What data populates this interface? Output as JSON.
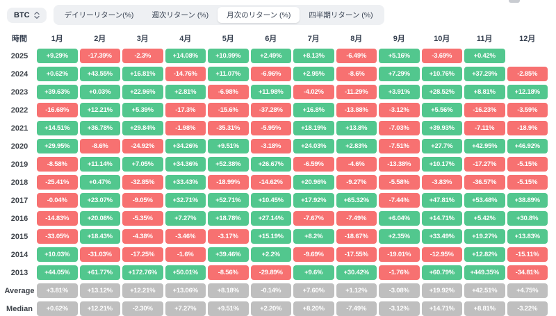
{
  "header": {
    "symbol": "BTC",
    "tabs": [
      {
        "label": "デイリーリターン(%)",
        "active": false
      },
      {
        "label": "週次リターン (%)",
        "active": false
      },
      {
        "label": "月次のリターン (%)",
        "active": true
      },
      {
        "label": "四半期リターン (%)",
        "active": false
      }
    ]
  },
  "colors": {
    "positive": "#52c78e",
    "negative": "#f77171",
    "summary": "#bfbfbf"
  },
  "chart_data": {
    "type": "heatmap",
    "columns": [
      "時間",
      "1月",
      "2月",
      "3月",
      "4月",
      "5月",
      "6月",
      "7月",
      "8月",
      "9月",
      "10月",
      "11月",
      "12月"
    ],
    "rows": [
      {
        "label": "2025",
        "values": [
          "+9.29%",
          "-17.39%",
          "-2.3%",
          "+14.08%",
          "+10.99%",
          "+2.49%",
          "+8.13%",
          "-6.49%",
          "+5.16%",
          "-3.69%",
          "+0.42%",
          ""
        ]
      },
      {
        "label": "2024",
        "values": [
          "+0.62%",
          "+43.55%",
          "+16.81%",
          "-14.76%",
          "+11.07%",
          "-6.96%",
          "+2.95%",
          "-8.6%",
          "+7.29%",
          "+10.76%",
          "+37.29%",
          "-2.85%"
        ]
      },
      {
        "label": "2023",
        "values": [
          "+39.63%",
          "+0.03%",
          "+22.96%",
          "+2.81%",
          "-6.98%",
          "+11.98%",
          "-4.02%",
          "-11.29%",
          "+3.91%",
          "+28.52%",
          "+8.81%",
          "+12.18%"
        ]
      },
      {
        "label": "2022",
        "values": [
          "-16.68%",
          "+12.21%",
          "+5.39%",
          "-17.3%",
          "-15.6%",
          "-37.28%",
          "+16.8%",
          "-13.88%",
          "-3.12%",
          "+5.56%",
          "-16.23%",
          "-3.59%"
        ]
      },
      {
        "label": "2021",
        "values": [
          "+14.51%",
          "+36.78%",
          "+29.84%",
          "-1.98%",
          "-35.31%",
          "-5.95%",
          "+18.19%",
          "+13.8%",
          "-7.03%",
          "+39.93%",
          "-7.11%",
          "-18.9%"
        ]
      },
      {
        "label": "2020",
        "values": [
          "+29.95%",
          "-8.6%",
          "-24.92%",
          "+34.26%",
          "+9.51%",
          "-3.18%",
          "+24.03%",
          "+2.83%",
          "-7.51%",
          "+27.7%",
          "+42.95%",
          "+46.92%"
        ]
      },
      {
        "label": "2019",
        "values": [
          "-8.58%",
          "+11.14%",
          "+7.05%",
          "+34.36%",
          "+52.38%",
          "+26.67%",
          "-6.59%",
          "-4.6%",
          "-13.38%",
          "+10.17%",
          "-17.27%",
          "-5.15%"
        ]
      },
      {
        "label": "2018",
        "values": [
          "-25.41%",
          "+0.47%",
          "-32.85%",
          "+33.43%",
          "-18.99%",
          "-14.62%",
          "+20.96%",
          "-9.27%",
          "-5.58%",
          "-3.83%",
          "-36.57%",
          "-5.15%"
        ]
      },
      {
        "label": "2017",
        "values": [
          "-0.04%",
          "+23.07%",
          "-9.05%",
          "+32.71%",
          "+52.71%",
          "+10.45%",
          "+17.92%",
          "+65.32%",
          "-7.44%",
          "+47.81%",
          "+53.48%",
          "+38.89%"
        ]
      },
      {
        "label": "2016",
        "values": [
          "-14.83%",
          "+20.08%",
          "-5.35%",
          "+7.27%",
          "+18.78%",
          "+27.14%",
          "-7.67%",
          "-7.49%",
          "+6.04%",
          "+14.71%",
          "+5.42%",
          "+30.8%"
        ]
      },
      {
        "label": "2015",
        "values": [
          "-33.05%",
          "+18.43%",
          "-4.38%",
          "-3.46%",
          "-3.17%",
          "+15.19%",
          "+8.2%",
          "-18.67%",
          "+2.35%",
          "+33.49%",
          "+19.27%",
          "+13.83%"
        ]
      },
      {
        "label": "2014",
        "values": [
          "+10.03%",
          "-31.03%",
          "-17.25%",
          "-1.6%",
          "+39.46%",
          "+2.2%",
          "-9.69%",
          "-17.55%",
          "-19.01%",
          "-12.95%",
          "+12.82%",
          "-15.11%"
        ]
      },
      {
        "label": "2013",
        "values": [
          "+44.05%",
          "+61.77%",
          "+172.76%",
          "+50.01%",
          "-8.56%",
          "-29.89%",
          "+9.6%",
          "+30.42%",
          "-1.76%",
          "+60.79%",
          "+449.35%",
          "-34.81%"
        ]
      },
      {
        "label": "Average",
        "summary": true,
        "values": [
          "+3.81%",
          "+13.12%",
          "+12.21%",
          "+13.06%",
          "+8.18%",
          "-0.14%",
          "+7.60%",
          "+1.12%",
          "-3.08%",
          "+19.92%",
          "+42.51%",
          "+4.75%"
        ]
      },
      {
        "label": "Median",
        "summary": true,
        "values": [
          "+0.62%",
          "+12.21%",
          "-2.30%",
          "+7.27%",
          "+9.51%",
          "+2.20%",
          "+8.20%",
          "-7.49%",
          "-3.12%",
          "+14.71%",
          "+8.81%",
          "-3.22%"
        ]
      }
    ]
  }
}
